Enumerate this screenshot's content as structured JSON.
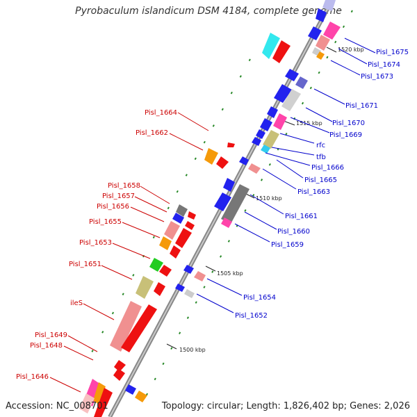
{
  "title": "Pyrobaculum islandicum DSM 4184, complete genome",
  "accession": "Accession: NC_008701",
  "topology": "Topology: circular; Length: 1,826,402 bp; Genes: 2,026",
  "ticks": [
    {
      "label": "1520 kbp"
    },
    {
      "label": "1515 kbp"
    },
    {
      "label": "1510 kbp"
    },
    {
      "label": "1505 kbp"
    },
    {
      "label": "1500 kbp"
    }
  ],
  "labels_left": [
    {
      "text": "Pisl_1664"
    },
    {
      "text": "Pisl_1662"
    },
    {
      "text": "Pisl_1658"
    },
    {
      "text": "Pisl_1657"
    },
    {
      "text": "Pisl_1656"
    },
    {
      "text": "Pisl_1655"
    },
    {
      "text": "Pisl_1653"
    },
    {
      "text": "Pisl_1651"
    },
    {
      "text": "ileS"
    },
    {
      "text": "Pisl_1649"
    },
    {
      "text": "Pisl_1648"
    },
    {
      "text": "Pisl_1646"
    }
  ],
  "labels_right": [
    {
      "text": "Pisl_1675"
    },
    {
      "text": "Pisl_1674"
    },
    {
      "text": "Pisl_1673"
    },
    {
      "text": "Pisl_1671"
    },
    {
      "text": "Pisl_1670"
    },
    {
      "text": "Pisl_1669"
    },
    {
      "text": "rfc"
    },
    {
      "text": "tfb"
    },
    {
      "text": "Pisl_1666"
    },
    {
      "text": "Pisl_1665"
    },
    {
      "text": "Pisl_1663"
    },
    {
      "text": "Pisl_1661"
    },
    {
      "text": "Pisl_1660"
    },
    {
      "text": "Pisl_1659"
    },
    {
      "text": "Pisl_1654"
    },
    {
      "text": "Pisl_1652"
    }
  ],
  "colors": {
    "forward_label": "#cc0000",
    "reverse_label": "#0000cc",
    "backbone": "#999999",
    "tick_dash": "#228822"
  }
}
